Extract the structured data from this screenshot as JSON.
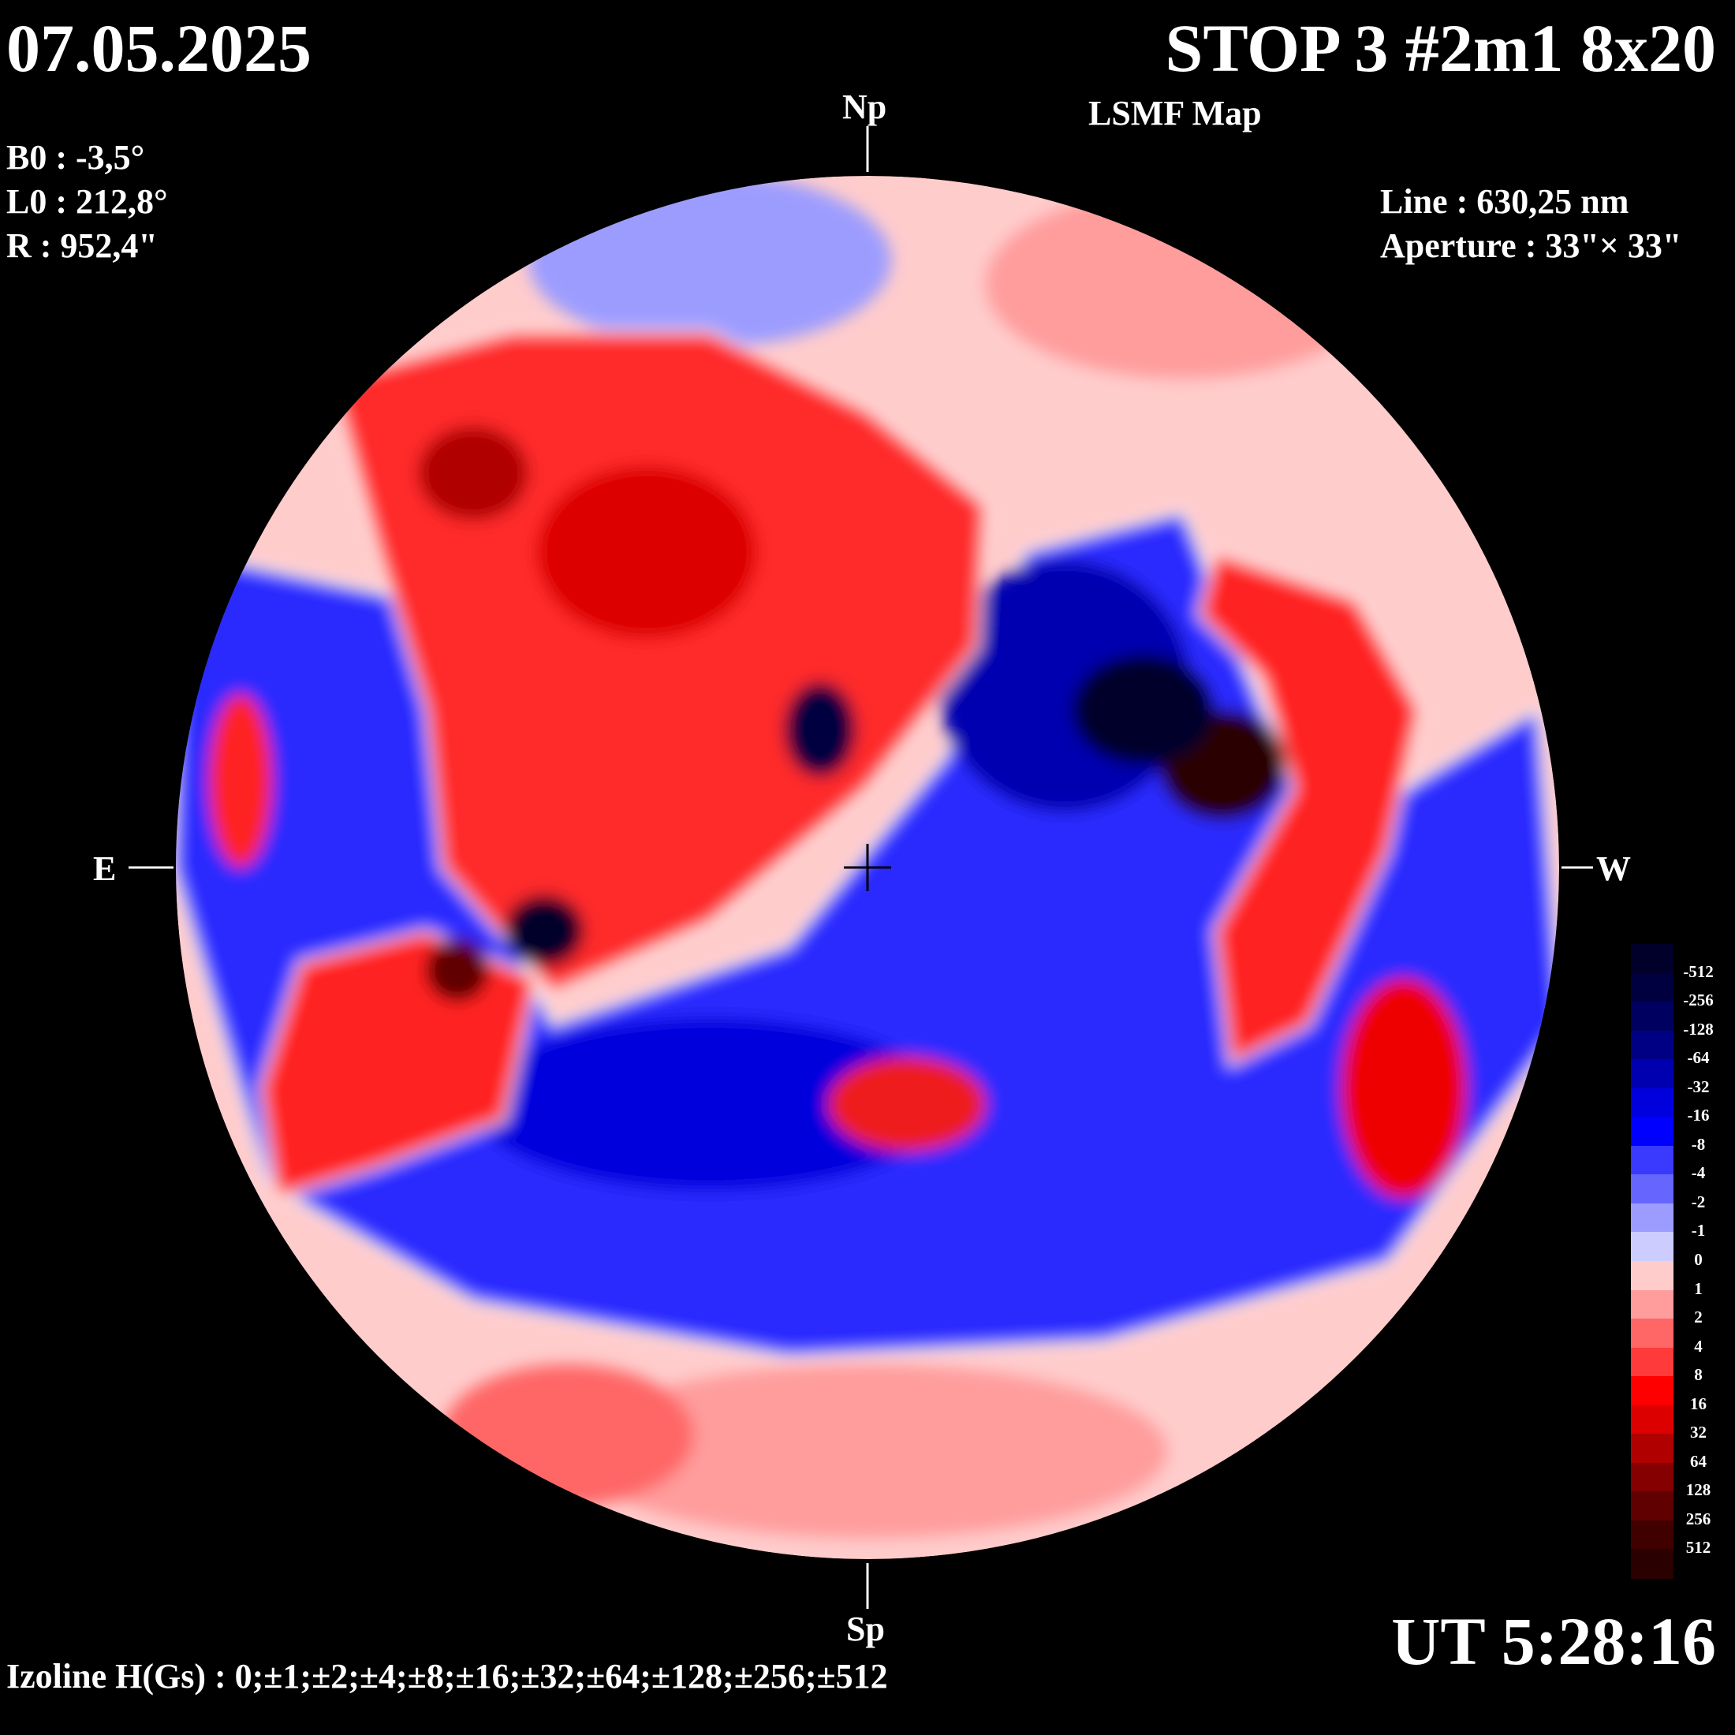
{
  "date": "07.05.2025",
  "title": "STOP 3 #2m1 8x20",
  "subtitle": "LSMF  Map",
  "params": {
    "b0": "B0 : -3,5°",
    "l0": "L0 : 212,8°",
    "r": "R  : 952,4\""
  },
  "instrument": {
    "line": "Line :  630,25 nm",
    "aperture": "Aperture : 33\"× 33\""
  },
  "directions": {
    "north": "Np",
    "south": "Sp",
    "east": "E",
    "west": "W"
  },
  "time": "UT 5:28:16",
  "izoline": "Izoline H(Gs) : 0;±1;±2;±4;±8;±16;±32;±64;±128;±256;±512",
  "legend": {
    "labels": [
      "-512",
      "-256",
      "-128",
      "-64",
      "-32",
      "-16",
      "-8",
      "-4",
      "-2",
      "-1",
      "0",
      "1",
      "2",
      "4",
      "8",
      "16",
      "32",
      "64",
      "128",
      "256",
      "512"
    ],
    "colors": [
      "#00002a",
      "#000040",
      "#000060",
      "#000085",
      "#0000b0",
      "#0000dd",
      "#0000ff",
      "#3a3aff",
      "#6666ff",
      "#9c9cff",
      "#ccccff",
      "#ffcccc",
      "#ff9c9c",
      "#ff6666",
      "#ff3a3a",
      "#ff0000",
      "#dd0000",
      "#b00000",
      "#850000",
      "#600000",
      "#400000",
      "#2a0000"
    ]
  }
}
